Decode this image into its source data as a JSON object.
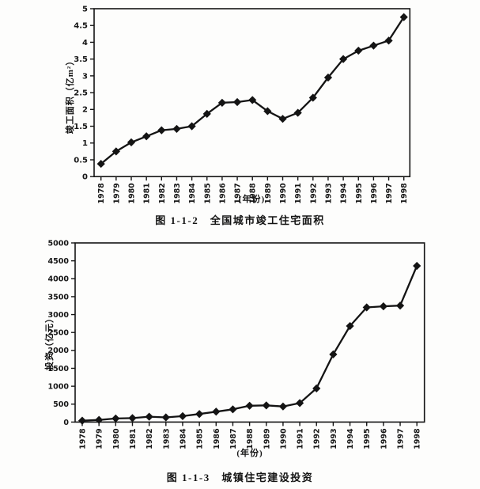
{
  "page": {
    "background": "#fdfdfc",
    "ink": "#141414"
  },
  "chart_data": [
    {
      "type": "line",
      "caption": "图 1-1-2　全国城市竣工住宅面积",
      "ylabel": "竣工面积（亿m²）",
      "xlabel": "(年份)",
      "categories": [
        "1978",
        "1979",
        "1980",
        "1981",
        "1982",
        "1983",
        "1984",
        "1985",
        "1986",
        "1987",
        "1988",
        "1989",
        "1990",
        "1991",
        "1992",
        "1993",
        "1994",
        "1995",
        "1996",
        "1997",
        "1998"
      ],
      "values": [
        0.38,
        0.75,
        1.02,
        1.2,
        1.38,
        1.42,
        1.5,
        1.87,
        2.2,
        2.22,
        2.28,
        1.95,
        1.72,
        1.9,
        2.35,
        2.95,
        3.5,
        3.75,
        3.9,
        4.05,
        4.75
      ],
      "ylim": [
        0,
        5
      ],
      "yticks": [
        0,
        0.5,
        1,
        1.5,
        2,
        2.5,
        3,
        3.5,
        4,
        4.5,
        5
      ],
      "ytick_labels": [
        "0",
        "0.5",
        "1",
        "1.5",
        "2",
        "2.5",
        "3",
        "3.5",
        "4",
        "4.5",
        "5"
      ],
      "grid": "off",
      "legend": "none",
      "marker": "diamond",
      "line_color": "#141414"
    },
    {
      "type": "line",
      "caption": "图 1-1-3　城镇住宅建设投资",
      "ylabel": "投资（亿元）",
      "xlabel": "(年份)",
      "categories": [
        "1978",
        "1979",
        "1980",
        "1981",
        "1982",
        "1983",
        "1984",
        "1985",
        "1986",
        "1987",
        "1988",
        "1989",
        "1990",
        "1991",
        "1992",
        "1993",
        "1994",
        "1995",
        "1996",
        "1997",
        "1998"
      ],
      "values": [
        40,
        60,
        100,
        110,
        150,
        130,
        165,
        225,
        290,
        355,
        455,
        465,
        435,
        530,
        940,
        1890,
        2680,
        3200,
        3230,
        3250,
        4360
      ],
      "ylim": [
        0,
        5000
      ],
      "yticks": [
        0,
        500,
        1000,
        1500,
        2000,
        2500,
        3000,
        3500,
        4000,
        4500,
        5000
      ],
      "ytick_labels": [
        "0",
        "500",
        "1000",
        "1500",
        "2000",
        "2500",
        "3000",
        "3500",
        "4000",
        "4500",
        "5000"
      ],
      "grid": "off",
      "legend": "none",
      "marker": "diamond",
      "line_color": "#141414"
    }
  ]
}
